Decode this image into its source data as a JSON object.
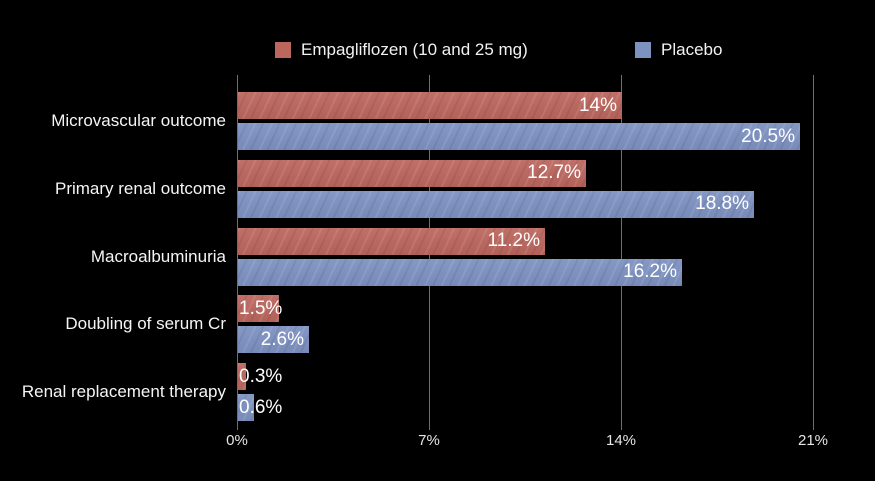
{
  "chart_data": {
    "type": "bar",
    "orientation": "horizontal",
    "title": "",
    "categories": [
      "Microvascular outcome",
      "Primary renal outcome",
      "Macroalbuminuria",
      "Doubling of serum Cr",
      "Renal replacement therapy"
    ],
    "series": [
      {
        "name": "Empagliflozen (10 and 25 mg)",
        "color": "#bc675e",
        "values": [
          14,
          12.7,
          11.2,
          1.5,
          0.3
        ],
        "labels": [
          "14%",
          "12.7%",
          "11.2%",
          "1.5%",
          "0.3%"
        ]
      },
      {
        "name": "Placebo",
        "color": "#7e92c2",
        "values": [
          20.5,
          18.8,
          16.2,
          2.6,
          0.6
        ],
        "labels": [
          "20.5%",
          "18.8%",
          "16.2%",
          "2.6%",
          "0.6%"
        ]
      }
    ],
    "x_axis": {
      "min": 0,
      "max": 21,
      "tick_values": [
        0,
        7,
        14,
        21
      ],
      "tick_labels": [
        "0%",
        "7%",
        "14%",
        "21%"
      ]
    },
    "grid": true,
    "legend_position": "top",
    "colors": {
      "background": "#000000",
      "gridline": "#6f6f6f",
      "tick_text": "#e6e6e6",
      "category_text": "#f5f5f5",
      "value_text": "#ffffff"
    }
  }
}
